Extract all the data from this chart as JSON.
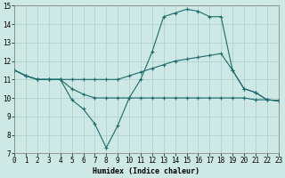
{
  "xlabel": "Humidex (Indice chaleur)",
  "xlim": [
    0,
    23
  ],
  "ylim": [
    7,
    15
  ],
  "xticks": [
    0,
    1,
    2,
    3,
    4,
    5,
    6,
    7,
    8,
    9,
    10,
    11,
    12,
    13,
    14,
    15,
    16,
    17,
    18,
    19,
    20,
    21,
    22,
    23
  ],
  "yticks": [
    7,
    8,
    9,
    10,
    11,
    12,
    13,
    14,
    15
  ],
  "background_color": "#cde8e5",
  "grid_color": "#aacfcc",
  "line_color": "#1a6b6b",
  "line1_x": [
    0,
    1,
    2,
    3,
    4,
    5,
    6,
    7,
    8,
    9,
    10,
    11,
    12,
    13,
    14,
    15,
    16,
    17,
    18,
    19,
    20,
    21,
    22,
    23
  ],
  "line1_y": [
    11.5,
    11.2,
    11.0,
    11.0,
    11.0,
    9.9,
    9.4,
    8.6,
    7.3,
    8.5,
    10.0,
    11.0,
    12.5,
    14.4,
    14.6,
    14.8,
    14.7,
    14.4,
    14.4,
    11.5,
    10.5,
    10.3,
    9.9,
    9.85
  ],
  "line2_x": [
    0,
    1,
    2,
    3,
    4,
    5,
    6,
    7,
    8,
    9,
    10,
    11,
    12,
    13,
    14,
    15,
    16,
    17,
    18,
    19,
    20,
    21,
    22,
    23
  ],
  "line2_y": [
    11.5,
    11.2,
    11.0,
    11.0,
    11.0,
    11.0,
    11.0,
    11.0,
    11.0,
    11.0,
    11.2,
    11.4,
    11.6,
    11.8,
    12.0,
    12.1,
    12.2,
    12.3,
    12.4,
    11.5,
    10.5,
    10.3,
    9.9,
    9.85
  ],
  "line3_x": [
    0,
    1,
    2,
    3,
    4,
    5,
    6,
    7,
    8,
    9,
    10,
    11,
    12,
    13,
    14,
    15,
    16,
    17,
    18,
    19,
    20,
    21,
    22,
    23
  ],
  "line3_y": [
    11.5,
    11.2,
    11.0,
    11.0,
    11.0,
    10.5,
    10.2,
    10.0,
    10.0,
    10.0,
    10.0,
    10.0,
    10.0,
    10.0,
    10.0,
    10.0,
    10.0,
    10.0,
    10.0,
    10.0,
    10.0,
    9.9,
    9.9,
    9.85
  ],
  "xlabel_fontsize": 6,
  "tick_fontsize": 5.5,
  "linewidth": 0.8,
  "markersize": 3
}
